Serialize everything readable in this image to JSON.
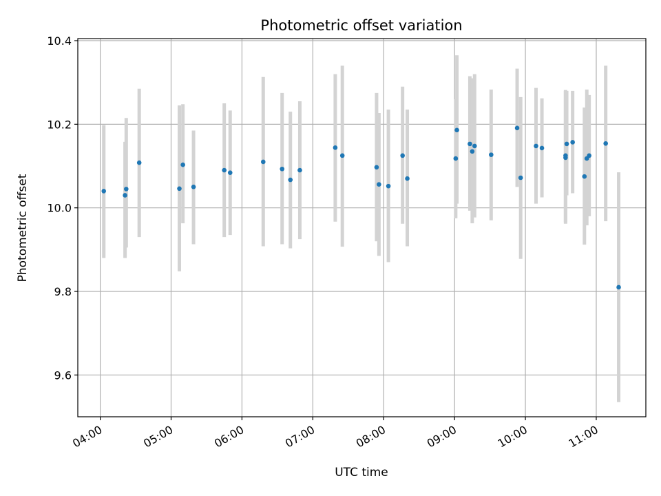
{
  "chart_data": {
    "type": "scatter",
    "title": "Photometric offset variation",
    "xlabel": "UTC time",
    "ylabel": "Photometric offset",
    "x_tick_labels": [
      "04:00",
      "05:00",
      "06:00",
      "07:00",
      "08:00",
      "09:00",
      "10:00",
      "11:00"
    ],
    "y_tick_labels": [
      "9.6",
      "9.8",
      "10.0",
      "10.2",
      "10.4"
    ],
    "xlim": [
      "03:41",
      "11:42"
    ],
    "ylim": [
      9.5,
      10.405
    ],
    "grid": true,
    "marker_color": "#1f77b4",
    "errorbar_color": "#d3d3d3",
    "series": [
      {
        "x": [
          "04:03",
          "04:21",
          "04:22",
          "04:33",
          "05:07",
          "05:10",
          "05:19",
          "05:45",
          "05:50",
          "06:18",
          "06:34",
          "06:41",
          "06:49",
          "07:19",
          "07:25",
          "07:54",
          "07:56",
          "08:04",
          "08:16",
          "08:20",
          "09:01",
          "09:02",
          "09:13",
          "09:15",
          "09:17",
          "09:31",
          "09:53",
          "09:56",
          "10:09",
          "10:14",
          "10:34",
          "10:34",
          "10:35",
          "10:40",
          "10:50",
          "10:52",
          "10:54",
          "11:08",
          "11:19"
        ],
        "y": [
          10.04,
          10.03,
          10.045,
          10.108,
          10.046,
          10.103,
          10.05,
          10.09,
          10.084,
          10.11,
          10.093,
          10.067,
          10.09,
          10.144,
          10.125,
          10.097,
          10.056,
          10.052,
          10.125,
          10.07,
          10.118,
          10.186,
          10.153,
          10.135,
          10.148,
          10.127,
          10.191,
          10.072,
          10.148,
          10.143,
          10.12,
          10.125,
          10.153,
          10.157,
          10.075,
          10.118,
          10.125,
          10.154,
          9.81
        ],
        "err_low": [
          9.88,
          9.88,
          9.905,
          9.93,
          9.848,
          9.963,
          9.913,
          9.93,
          9.935,
          9.908,
          9.913,
          9.903,
          9.925,
          9.967,
          9.907,
          9.92,
          9.885,
          9.87,
          9.962,
          9.908,
          9.975,
          10.01,
          9.993,
          9.963,
          9.977,
          9.97,
          10.05,
          9.878,
          10.01,
          10.025,
          9.962,
          9.965,
          10.03,
          10.035,
          9.912,
          9.958,
          9.98,
          9.968,
          9.535
        ],
        "err_high": [
          10.198,
          10.158,
          10.215,
          10.285,
          10.245,
          10.248,
          10.185,
          10.25,
          10.233,
          10.313,
          10.275,
          10.23,
          10.255,
          10.32,
          10.34,
          10.275,
          10.227,
          10.235,
          10.29,
          10.235,
          10.26,
          10.365,
          10.315,
          10.31,
          10.32,
          10.283,
          10.333,
          10.265,
          10.287,
          10.262,
          10.28,
          10.282,
          10.28,
          10.28,
          10.24,
          10.283,
          10.27,
          10.34,
          10.085
        ]
      }
    ]
  }
}
